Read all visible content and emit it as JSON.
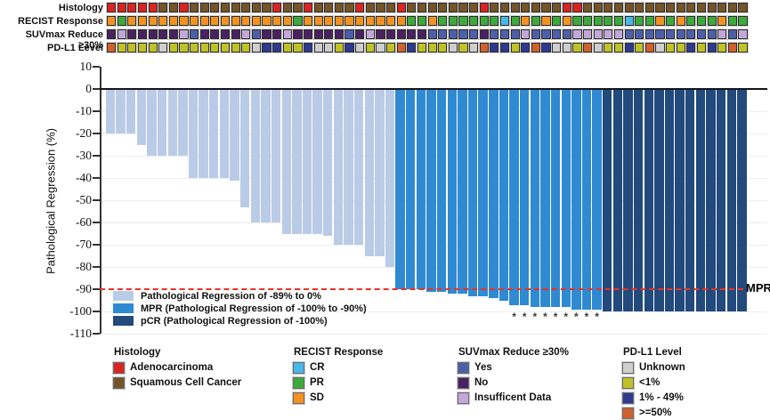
{
  "figure": {
    "mpr_label": "MPR"
  },
  "tracks": {
    "rows": [
      {
        "key": "histology",
        "label": "Histology",
        "palette": "histology",
        "codes": [
          "A",
          "A",
          "A",
          "A",
          "A",
          "S",
          "S",
          "A",
          "S",
          "S",
          "S",
          "S",
          "S",
          "S",
          "S",
          "S",
          "A",
          "S",
          "S",
          "A",
          "S",
          "S",
          "S",
          "S",
          "A",
          "S",
          "S",
          "S",
          "A",
          "S",
          "S",
          "S",
          "S",
          "S",
          "S",
          "S",
          "A",
          "S",
          "S",
          "S",
          "S",
          "S",
          "S",
          "S",
          "A",
          "A",
          "S",
          "S",
          "S",
          "S",
          "S",
          "S",
          "S",
          "S",
          "S",
          "S",
          "S",
          "S",
          "S",
          "S",
          "S",
          "S"
        ]
      },
      {
        "key": "recist",
        "label": "RECIST Response",
        "palette": "recist",
        "codes": [
          "SD",
          "PR",
          "SD",
          "SD",
          "SD",
          "SD",
          "SD",
          "SD",
          "SD",
          "SD",
          "SD",
          "SD",
          "SD",
          "SD",
          "SD",
          "SD",
          "SD",
          "SD",
          "PR",
          "SD",
          "SD",
          "SD",
          "SD",
          "SD",
          "SD",
          "SD",
          "SD",
          "SD",
          "SD",
          "PR",
          "PR",
          "SD",
          "PR",
          "PR",
          "PR",
          "PR",
          "PR",
          "PR",
          "CR",
          "PR",
          "SD",
          "PR",
          "SD",
          "PR",
          "SD",
          "PR",
          "PR",
          "PR",
          "PR",
          "PR",
          "CR",
          "PR",
          "PR",
          "SD",
          "PR",
          "SD",
          "PR",
          "PR",
          "PR",
          "SD",
          "PR",
          "PR"
        ]
      },
      {
        "key": "suvmax",
        "label": "SUVmax Reduce ≥30%",
        "palette": "suvmax",
        "codes": [
          "N",
          "I",
          "N",
          "N",
          "N",
          "N",
          "N",
          "I",
          "Y",
          "N",
          "N",
          "N",
          "N",
          "I",
          "Y",
          "N",
          "N",
          "I",
          "N",
          "N",
          "N",
          "N",
          "N",
          "Y",
          "N",
          "I",
          "N",
          "N",
          "N",
          "N",
          "N",
          "Y",
          "Y",
          "Y",
          "Y",
          "Y",
          "N",
          "Y",
          "Y",
          "Y",
          "I",
          "Y",
          "Y",
          "Y",
          "Y",
          "I",
          "I",
          "I",
          "I",
          "I",
          "Y",
          "Y",
          "Y",
          "Y",
          "Y",
          "Y",
          "Y",
          "Y",
          "Y",
          "I",
          "Y",
          "I"
        ]
      },
      {
        "key": "pdl1",
        "label": "PD-L1 Level",
        "palette": "pdl1",
        "codes": [
          "H",
          "L",
          "L",
          "L",
          "L",
          "U",
          "L",
          "L",
          "L",
          "L",
          "L",
          "L",
          "L",
          "L",
          "U",
          "M",
          "M",
          "L",
          "L",
          "M",
          "U",
          "U",
          "L",
          "M",
          "U",
          "L",
          "U",
          "L",
          "H",
          "M",
          "L",
          "L",
          "L",
          "U",
          "L",
          "U",
          "H",
          "M",
          "M",
          "L",
          "M",
          "H",
          "M",
          "U",
          "U",
          "L",
          "H",
          "U",
          "L",
          "L",
          "M",
          "L",
          "H",
          "U",
          "L",
          "L",
          "M",
          "L",
          "M",
          "L",
          "H",
          "L"
        ]
      }
    ],
    "palettes": {
      "histology": {
        "A": "#da2420",
        "S": "#745428"
      },
      "recist": {
        "CR": "#46b9e9",
        "PR": "#3caa3a",
        "SD": "#f3921f"
      },
      "suvmax": {
        "Y": "#4d5fa8",
        "N": "#4a2160",
        "I": "#c2a7d8"
      },
      "pdl1": {
        "U": "#cecece",
        "L": "#bfc226",
        "M": "#2d3a90",
        "H": "#d0612c"
      }
    }
  },
  "chart_data": {
    "type": "bar",
    "title": "",
    "xlabel": "",
    "ylabel": "Pathological Regression (%)",
    "ylim": [
      -110,
      10
    ],
    "yticks": [
      10,
      0,
      -10,
      -20,
      -30,
      -40,
      -50,
      -60,
      -70,
      -80,
      -90,
      -100,
      -110
    ],
    "n_patients": 62,
    "grid": "horizontal-light",
    "legend_position": "inside-lower-left",
    "values": [
      -20,
      -20,
      -20,
      -25,
      -30,
      -30,
      -30,
      -30,
      -40,
      -40,
      -40,
      -40,
      -41,
      -53,
      -60,
      -60,
      -60,
      -65,
      -65,
      -65,
      -65,
      -66,
      -70,
      -70,
      -70,
      -75,
      -75,
      -80,
      -90,
      -90,
      -90,
      -91,
      -91,
      -92,
      -92,
      -93,
      -93,
      -94,
      -95,
      -97,
      -97,
      -98,
      -98,
      -98,
      -98,
      -99,
      -99,
      -99,
      -100,
      -100,
      -100,
      -100,
      -100,
      -100,
      -100,
      -100,
      -100,
      -100,
      -100,
      -100,
      -100,
      -100
    ],
    "bar_groups": {
      "reg": {
        "label": "Pathological Regression of -89% to 0%",
        "color": "#b9cbe6"
      },
      "mpr": {
        "label": "MPR (Pathological Regression of -100% to -90%)",
        "color": "#2f8ad2"
      },
      "pcr": {
        "label": "pCR (Pathological Regression of -100%)",
        "color": "#224a7c"
      }
    },
    "reference_line": {
      "value": -90,
      "label": "MPR",
      "color": "#ea3223",
      "style": "dashed"
    },
    "asterisks": {
      "symbol": "*",
      "columns": [
        40,
        41,
        42,
        43,
        44,
        45,
        46,
        47,
        48
      ]
    }
  },
  "bottom_legend": {
    "groups": [
      {
        "key": "histology",
        "title": "Histology",
        "items": [
          {
            "label": "Adenocarcinoma",
            "color": "#da2420"
          },
          {
            "label": "Squamous Cell Cancer",
            "color": "#745428"
          }
        ]
      },
      {
        "key": "recist",
        "title": "RECIST Response",
        "items": [
          {
            "label": "CR",
            "color": "#46b9e9"
          },
          {
            "label": "PR",
            "color": "#3caa3a"
          },
          {
            "label": "SD",
            "color": "#f3921f"
          }
        ]
      },
      {
        "key": "suvmax",
        "title": "SUVmax Reduce ≥30%",
        "items": [
          {
            "label": "Yes",
            "color": "#4d5fa8"
          },
          {
            "label": "No",
            "color": "#4a2160"
          },
          {
            "label": "Insufficent Data",
            "color": "#c2a7d8"
          }
        ]
      },
      {
        "key": "pdl1",
        "title": "PD-L1 Level",
        "items": [
          {
            "label": "Unknown",
            "color": "#cecece"
          },
          {
            "label": "<1%",
            "color": "#bfc226"
          },
          {
            "label": "1% - 49%",
            "color": "#2d3a90"
          },
          {
            "label": ">=50%",
            "color": "#d0612c"
          }
        ]
      }
    ]
  }
}
